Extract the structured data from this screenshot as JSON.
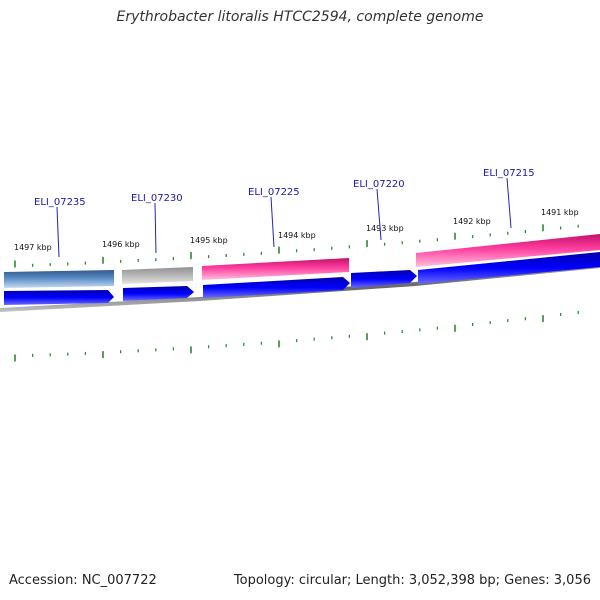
{
  "title": "Erythrobacter litoralis HTCC2594, complete genome",
  "footer": {
    "accession": "Accession: NC_007722",
    "summary": "Topology: circular; Length: 3,052,398 bp; Genes: 3,056"
  },
  "colors": {
    "tick": "#2e8b2e",
    "backbone": "#777777",
    "forward_cds": "#0000ee",
    "feature_pink": "#ee2288",
    "feature_steelblue": "#4f7fb8",
    "feature_gray": "#aaaaaa",
    "gene_label": "#1a1aa8"
  },
  "scale_labels": [
    {
      "text": "1497 kbp",
      "kbp": 1497
    },
    {
      "text": "1496 kbp",
      "kbp": 1496
    },
    {
      "text": "1495 kbp",
      "kbp": 1495
    },
    {
      "text": "1494 kbp",
      "kbp": 1494
    },
    {
      "text": "1493 kbp",
      "kbp": 1493
    },
    {
      "text": "1492 kbp",
      "kbp": 1492
    },
    {
      "text": "1491 kbp",
      "kbp": 1491
    }
  ],
  "gene_labels": [
    {
      "text": "ELI_07235"
    },
    {
      "text": "ELI_07230"
    },
    {
      "text": "ELI_07225"
    },
    {
      "text": "ELI_07220"
    },
    {
      "text": "ELI_07215"
    }
  ]
}
